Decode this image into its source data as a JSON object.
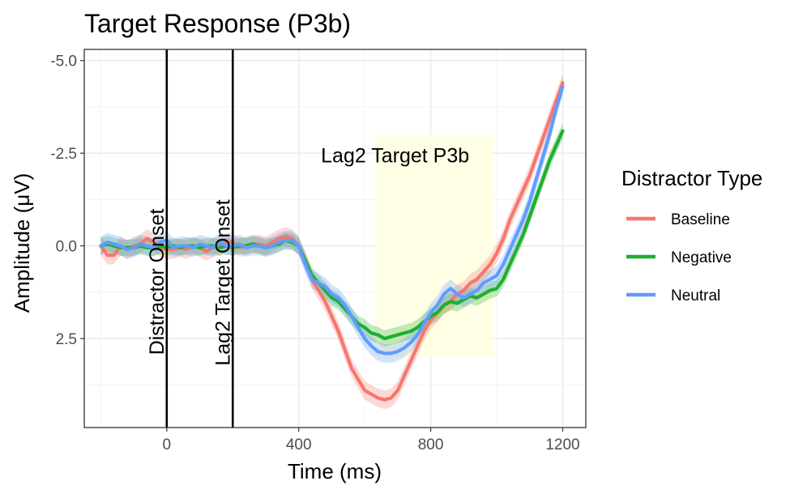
{
  "chart_data": {
    "type": "line",
    "title": "Target Response (P3b)",
    "xlabel": "Time (ms)",
    "ylabel": "Amplitude (μV)",
    "xlim": [
      -250,
      1270
    ],
    "ylim": [
      -5.3,
      4.9
    ],
    "y_reversed": true,
    "x_ticks": [
      0,
      400,
      800,
      1200
    ],
    "x_tick_labels": [
      "0",
      "400",
      "800",
      "1200"
    ],
    "y_ticks": [
      -5.0,
      -2.5,
      0.0,
      2.5
    ],
    "y_tick_labels": [
      "-5.0",
      "-2.5",
      "0.0",
      "2.5"
    ],
    "grid": true,
    "legend": {
      "title": "Distractor Type",
      "position": "right"
    },
    "colors": {
      "Baseline": "#F8766D",
      "Negative": "#1FAF2F",
      "Neutral": "#619CFF",
      "window": "#FFFFE0"
    },
    "vlines": [
      {
        "x": 0,
        "label": "Distractor Onset"
      },
      {
        "x": 200,
        "label": "Lag2 Target Onset"
      }
    ],
    "shaded_window": {
      "x0": 630,
      "x1": 990,
      "y0": -3.0,
      "y1": 3.0,
      "label": "Lag2 Target P3b"
    },
    "series": [
      {
        "name": "Baseline",
        "x": [
          -200,
          -180,
          -160,
          -140,
          -120,
          -100,
          -80,
          -60,
          -40,
          -20,
          0,
          20,
          40,
          60,
          80,
          100,
          120,
          140,
          160,
          180,
          200,
          220,
          240,
          260,
          280,
          300,
          320,
          340,
          360,
          380,
          400,
          420,
          440,
          460,
          480,
          500,
          520,
          540,
          560,
          580,
          600,
          620,
          640,
          660,
          680,
          700,
          720,
          740,
          760,
          780,
          800,
          820,
          840,
          860,
          880,
          900,
          920,
          940,
          960,
          980,
          1000,
          1020,
          1040,
          1060,
          1080,
          1100,
          1120,
          1140,
          1160,
          1180,
          1200
        ],
        "values": [
          0.0,
          0.25,
          0.25,
          0.0,
          0.1,
          0.0,
          -0.05,
          -0.2,
          -0.1,
          0.05,
          0.1,
          0.1,
          0.05,
          0.1,
          0.0,
          0.05,
          0.15,
          0.05,
          0.0,
          -0.1,
          -0.1,
          0.05,
          0.0,
          -0.05,
          -0.05,
          0.0,
          -0.1,
          -0.2,
          -0.25,
          -0.2,
          0.0,
          0.4,
          0.9,
          1.2,
          1.5,
          1.9,
          2.3,
          2.8,
          3.3,
          3.6,
          3.9,
          4.0,
          4.1,
          4.15,
          4.1,
          3.9,
          3.5,
          3.1,
          2.7,
          2.3,
          2.0,
          1.8,
          1.6,
          1.5,
          1.3,
          1.2,
          1.0,
          0.9,
          0.7,
          0.5,
          0.2,
          -0.2,
          -0.7,
          -1.1,
          -1.5,
          -1.9,
          -2.4,
          -2.9,
          -3.4,
          -3.9,
          -4.4
        ],
        "band": 0.25
      },
      {
        "name": "Negative",
        "x": [
          -200,
          -180,
          -160,
          -140,
          -120,
          -100,
          -80,
          -60,
          -40,
          -20,
          0,
          20,
          40,
          60,
          80,
          100,
          120,
          140,
          160,
          180,
          200,
          220,
          240,
          260,
          280,
          300,
          320,
          340,
          360,
          380,
          400,
          420,
          440,
          460,
          480,
          500,
          520,
          540,
          560,
          580,
          600,
          620,
          640,
          660,
          680,
          700,
          720,
          740,
          760,
          780,
          800,
          820,
          840,
          860,
          880,
          900,
          920,
          940,
          960,
          980,
          1000,
          1020,
          1040,
          1060,
          1080,
          1100,
          1120,
          1140,
          1160,
          1180,
          1200
        ],
        "values": [
          0.0,
          -0.05,
          0.0,
          0.05,
          0.05,
          0.05,
          0.0,
          0.05,
          0.05,
          0.0,
          0.05,
          0.0,
          0.05,
          0.0,
          0.0,
          0.05,
          0.0,
          0.0,
          0.05,
          0.0,
          0.05,
          0.0,
          0.0,
          -0.05,
          0.0,
          0.05,
          0.0,
          -0.05,
          -0.15,
          -0.1,
          0.0,
          0.4,
          0.8,
          1.0,
          1.2,
          1.4,
          1.5,
          1.7,
          1.9,
          2.1,
          2.2,
          2.35,
          2.4,
          2.5,
          2.45,
          2.4,
          2.35,
          2.3,
          2.2,
          2.05,
          1.9,
          1.8,
          1.6,
          1.5,
          1.55,
          1.45,
          1.35,
          1.4,
          1.3,
          1.2,
          1.15,
          0.9,
          0.5,
          0.1,
          -0.3,
          -0.8,
          -1.3,
          -1.8,
          -2.3,
          -2.7,
          -3.1
        ],
        "band": 0.22
      },
      {
        "name": "Neutral",
        "x": [
          -200,
          -180,
          -160,
          -140,
          -120,
          -100,
          -80,
          -60,
          -40,
          -20,
          0,
          20,
          40,
          60,
          80,
          100,
          120,
          140,
          160,
          180,
          200,
          220,
          240,
          260,
          280,
          300,
          320,
          340,
          360,
          380,
          400,
          420,
          440,
          460,
          480,
          500,
          520,
          540,
          560,
          580,
          600,
          620,
          640,
          660,
          680,
          700,
          720,
          740,
          760,
          780,
          800,
          820,
          840,
          860,
          880,
          900,
          920,
          940,
          960,
          980,
          1000,
          1020,
          1040,
          1060,
          1080,
          1100,
          1120,
          1140,
          1160,
          1180,
          1200
        ],
        "values": [
          0.0,
          -0.1,
          -0.05,
          0.0,
          0.1,
          0.05,
          -0.05,
          0.0,
          0.05,
          -0.1,
          -0.15,
          0.05,
          0.0,
          0.0,
          0.05,
          -0.05,
          0.0,
          0.05,
          -0.1,
          0.0,
          0.0,
          -0.05,
          0.05,
          0.0,
          0.0,
          0.05,
          0.0,
          -0.1,
          -0.15,
          -0.15,
          0.0,
          0.5,
          0.9,
          1.0,
          1.1,
          1.3,
          1.4,
          1.6,
          1.9,
          2.2,
          2.5,
          2.7,
          2.85,
          2.9,
          2.9,
          2.85,
          2.75,
          2.6,
          2.4,
          2.1,
          1.8,
          1.6,
          1.3,
          1.15,
          1.3,
          1.4,
          1.3,
          1.2,
          1.0,
          0.9,
          0.8,
          0.5,
          0.1,
          -0.3,
          -0.7,
          -1.2,
          -1.8,
          -2.4,
          -3.0,
          -3.7,
          -4.3
        ],
        "band": 0.25
      }
    ]
  }
}
